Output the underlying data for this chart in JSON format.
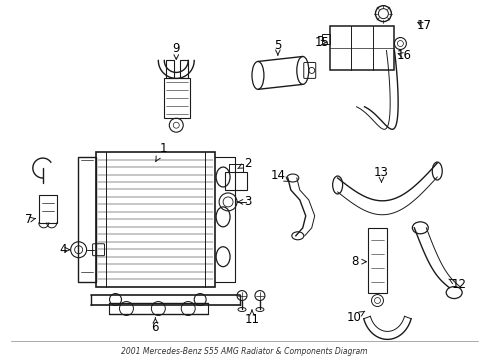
{
  "title": "2001 Mercedes-Benz S55 AMG Radiator & Components Diagram",
  "bg_color": "#ffffff",
  "line_color": "#1a1a1a",
  "label_color": "#000000",
  "figsize": [
    4.89,
    3.6
  ],
  "dpi": 100
}
